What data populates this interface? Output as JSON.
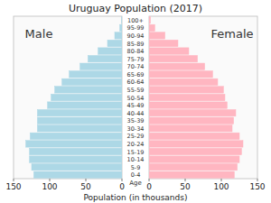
{
  "chart_data": {
    "type": "bar",
    "orientation": "horizontal",
    "title": "Uruguay Population (2017)",
    "xlabel": "Population (in thousands)",
    "ylabel": "Age",
    "categories": [
      "0-4",
      "5-9",
      "10-14",
      "15-19",
      "20-24",
      "25-29",
      "30-34",
      "35-39",
      "40-44",
      "45-49",
      "50-54",
      "55-59",
      "60-64",
      "65-69",
      "70-74",
      "75-79",
      "80-84",
      "85-89",
      "90-94",
      "95-99",
      "100+"
    ],
    "series": [
      {
        "name": "Male",
        "color": "#add8e6",
        "values": [
          122,
          125,
          128,
          128,
          133,
          127,
          117,
          117,
          117,
          103,
          98,
          93,
          83,
          73,
          58,
          47,
          33,
          20,
          10,
          3,
          0.5
        ]
      },
      {
        "name": "Female",
        "color": "#ffb6c1",
        "values": [
          118,
          122,
          125,
          128,
          130,
          125,
          115,
          117,
          120,
          108,
          105,
          103,
          95,
          88,
          77,
          67,
          55,
          40,
          22,
          8,
          2
        ]
      }
    ],
    "xlim": [
      0,
      150
    ],
    "xticks": [
      0,
      50,
      100,
      150
    ]
  }
}
